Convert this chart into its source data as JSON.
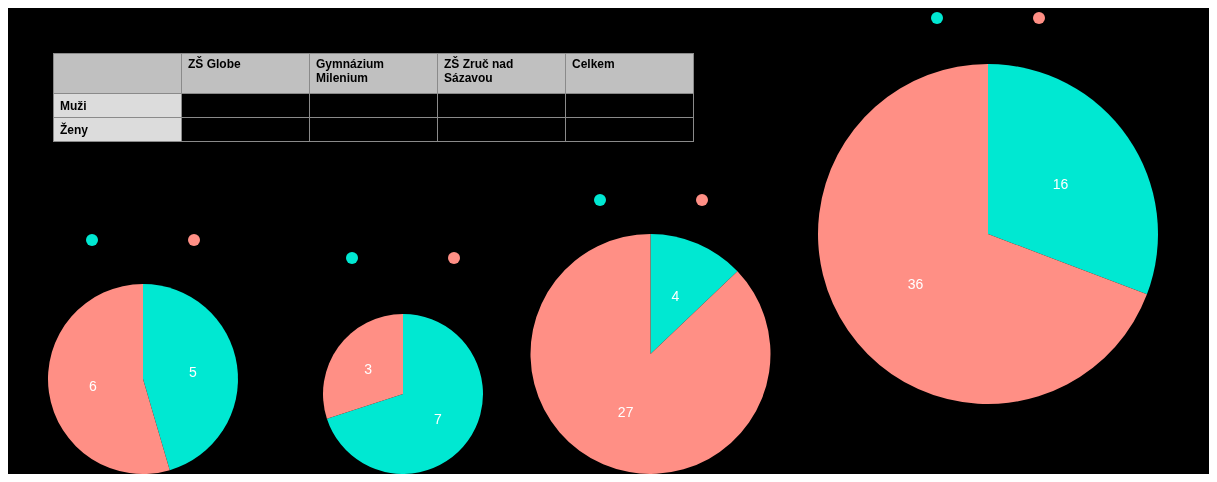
{
  "chart_data": [
    {
      "type": "other",
      "categories": [
        null,
        "ZŠ Globe",
        "Gymnázium Milenium",
        "ZŠ Zruč nad Sázavou",
        "Celkem"
      ],
      "y_categories": [
        "Muži",
        "Ženy"
      ]
    },
    {
      "type": "pie",
      "categories": [
        null,
        null
      ],
      "values": [
        5,
        6
      ],
      "colors": [
        "#00e8d2",
        "#ff8f85"
      ],
      "data_labels": true
    },
    {
      "type": "pie",
      "categories": [
        null,
        null
      ],
      "values": [
        7,
        3
      ],
      "colors": [
        "#00e8d2",
        "#ff8f85"
      ],
      "data_labels": true
    },
    {
      "type": "pie",
      "categories": [
        null,
        null
      ],
      "values": [
        4,
        27
      ],
      "colors": [
        "#00e8d2",
        "#ff8f85"
      ],
      "data_labels": true
    },
    {
      "type": "pie",
      "categories": [
        null,
        null
      ],
      "values": [
        16,
        36
      ],
      "colors": [
        "#00e8d2",
        "#ff8f85"
      ],
      "data_labels": true
    }
  ]
}
